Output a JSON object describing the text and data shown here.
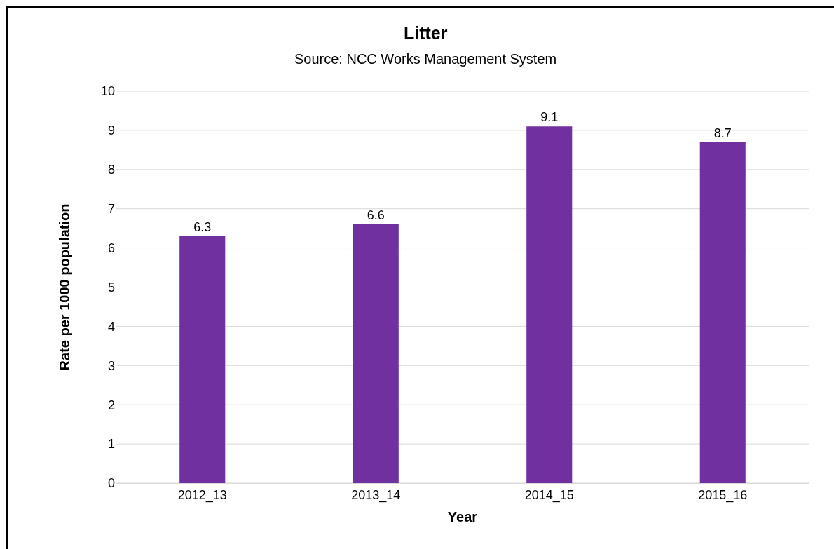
{
  "chart_data": {
    "type": "bar",
    "title": "Litter",
    "subtitle": "Source: NCC Works Management System",
    "xlabel": "Year",
    "ylabel": "Rate per 1000 population",
    "categories": [
      "2012_13",
      "2013_14",
      "2014_15",
      "2015_16"
    ],
    "values": [
      6.3,
      6.6,
      9.1,
      8.7
    ],
    "color": "#7030a0",
    "ylim": [
      0,
      10
    ],
    "yticks": [
      0,
      1,
      2,
      3,
      4,
      5,
      6,
      7,
      8,
      9,
      10
    ],
    "grid": "y",
    "data_labels": true
  }
}
